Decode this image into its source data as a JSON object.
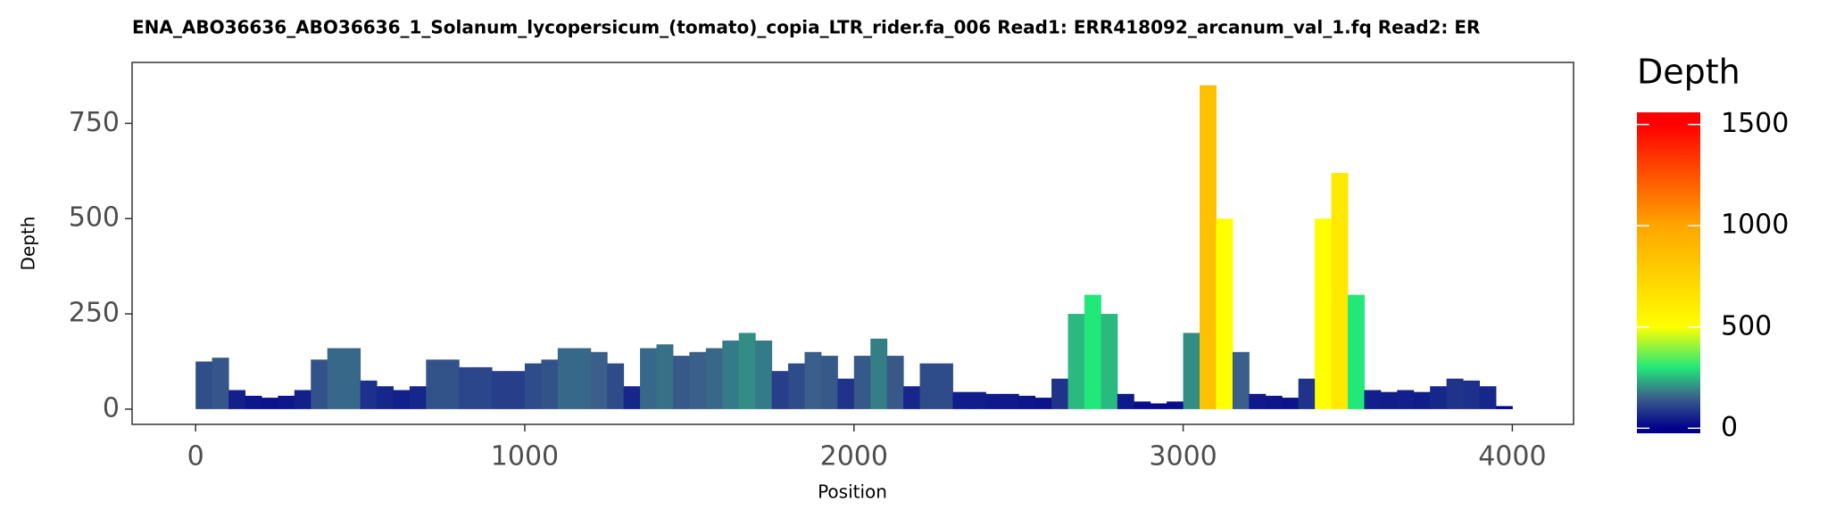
{
  "chart_data": {
    "type": "depth-bars",
    "title": "ENA_ABO36636_ABO36636_1_Solanum_lycopersicum_(tomato)_copia_LTR_rider.fa_006   Read1: ERR418092_arcanum_val_1.fq   Read2: ER",
    "x_label": "Position",
    "y_label": "Depth",
    "x": [
      0,
      50,
      100,
      150,
      200,
      250,
      300,
      350,
      400,
      450,
      500,
      550,
      600,
      650,
      700,
      750,
      800,
      850,
      900,
      950,
      1000,
      1050,
      1100,
      1150,
      1200,
      1250,
      1300,
      1350,
      1400,
      1450,
      1500,
      1550,
      1600,
      1650,
      1700,
      1750,
      1800,
      1850,
      1900,
      1950,
      2000,
      2050,
      2100,
      2150,
      2200,
      2250,
      2300,
      2350,
      2400,
      2450,
      2500,
      2550,
      2600,
      2650,
      2700,
      2750,
      2800,
      2850,
      2900,
      2950,
      3000,
      3050,
      3100,
      3150,
      3200,
      3250,
      3300,
      3350,
      3400,
      3450,
      3500,
      3550,
      3600,
      3650,
      3700,
      3750,
      3800,
      3850,
      3900,
      3950
    ],
    "values": [
      125,
      135,
      50,
      35,
      30,
      35,
      50,
      130,
      160,
      160,
      75,
      60,
      50,
      60,
      130,
      130,
      110,
      110,
      100,
      100,
      120,
      130,
      160,
      160,
      150,
      120,
      60,
      160,
      170,
      140,
      150,
      160,
      180,
      200,
      180,
      100,
      120,
      150,
      140,
      80,
      140,
      185,
      140,
      60,
      120,
      120,
      45,
      45,
      40,
      40,
      35,
      30,
      80,
      250,
      300,
      250,
      40,
      20,
      15,
      20,
      200,
      850,
      500,
      150,
      40,
      35,
      30,
      80,
      500,
      620,
      300,
      50,
      45,
      50,
      45,
      60,
      80,
      75,
      60,
      8
    ],
    "xlim": [
      -193,
      4186
    ],
    "ylim": [
      -40,
      910
    ],
    "xticks": [
      0,
      1000,
      2000,
      3000,
      4000
    ],
    "yticks": [
      0,
      250,
      500,
      750
    ],
    "legend": {
      "title": "Depth",
      "ylim": [
        -25,
        1560
      ],
      "ticks": [
        0,
        500,
        1000,
        1500
      ],
      "colorscale": [
        [
          0,
          "#00008b"
        ],
        [
          150,
          "#3a5f8a"
        ],
        [
          300,
          "#22e87a"
        ],
        [
          500,
          "#ffff00"
        ],
        [
          1000,
          "#ffa500"
        ],
        [
          1500,
          "#ff0000"
        ]
      ]
    }
  }
}
